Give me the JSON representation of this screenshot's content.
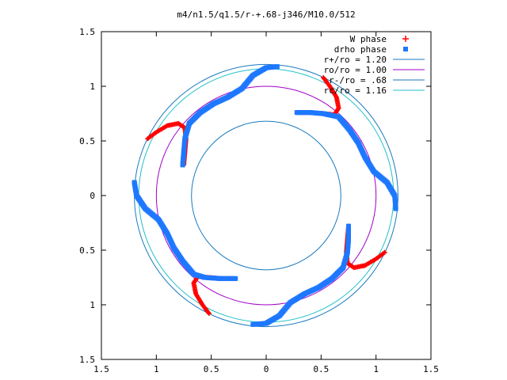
{
  "chart_data": {
    "type": "scatter",
    "title": "m4/n1.5/q1.5/r-+.68-j346/M10.0/512",
    "xlabel": "",
    "ylabel": "",
    "xlim": [
      -1.5,
      1.5
    ],
    "ylim": [
      -1.5,
      1.5
    ],
    "x_ticks": [
      -1.5,
      -1,
      -0.5,
      0,
      0.5,
      1,
      1.5
    ],
    "x_tick_labels": [
      "1.5",
      "1",
      "0.5",
      "0",
      "0.5",
      "1",
      "1.5"
    ],
    "y_ticks": [
      1.5,
      1,
      0.5,
      0,
      -0.5,
      -1,
      -1.5
    ],
    "y_tick_labels": [
      "1.5",
      "1",
      "0.5",
      "0",
      "0.5",
      "1",
      "1.5"
    ],
    "legend_position": "top-right",
    "grid": false,
    "circles": [
      {
        "name": "r+/ro = 1.20",
        "r": 1.2,
        "color": "#1a7abf"
      },
      {
        "name": "ro/ro = 1.00",
        "r": 1.0,
        "color": "#a000c8"
      },
      {
        "name": "r-/ro =  .68",
        "r": 0.68,
        "color": "#1a7abf"
      },
      {
        "name": "rc/ro = 1.16",
        "r": 1.16,
        "color": "#20c0c8"
      }
    ],
    "series": [
      {
        "name": "W phase",
        "marker": "plus",
        "color": "#ff0000",
        "arms": [
          [
            [
              -0.75,
              0.28
            ],
            [
              -0.74,
              0.4
            ],
            [
              -0.73,
              0.52
            ],
            [
              -0.74,
              0.62
            ],
            [
              -0.8,
              0.66
            ],
            [
              -0.9,
              0.64
            ],
            [
              -1.0,
              0.58
            ],
            [
              -1.08,
              0.52
            ]
          ],
          [
            [
              0.28,
              0.76
            ],
            [
              0.4,
              0.76
            ],
            [
              0.52,
              0.75
            ],
            [
              0.62,
              0.74
            ],
            [
              0.66,
              0.8
            ],
            [
              0.64,
              0.9
            ],
            [
              0.58,
              1.0
            ],
            [
              0.52,
              1.08
            ]
          ],
          [
            [
              0.75,
              -0.28
            ],
            [
              0.74,
              -0.4
            ],
            [
              0.73,
              -0.52
            ],
            [
              0.74,
              -0.62
            ],
            [
              0.8,
              -0.66
            ],
            [
              0.9,
              -0.64
            ],
            [
              1.0,
              -0.58
            ],
            [
              1.08,
              -0.52
            ]
          ],
          [
            [
              -0.28,
              -0.76
            ],
            [
              -0.4,
              -0.76
            ],
            [
              -0.52,
              -0.75
            ],
            [
              -0.62,
              -0.74
            ],
            [
              -0.66,
              -0.8
            ],
            [
              -0.64,
              -0.9
            ],
            [
              -0.58,
              -1.0
            ],
            [
              -0.52,
              -1.08
            ]
          ]
        ]
      },
      {
        "name": "drho phase",
        "marker": "square",
        "color": "#1e78ff",
        "arms": [
          [
            [
              -1.2,
              0.12
            ],
            [
              -1.18,
              0.0
            ],
            [
              -1.1,
              -0.12
            ],
            [
              -0.98,
              -0.22
            ],
            [
              -0.9,
              -0.35
            ],
            [
              -0.84,
              -0.48
            ],
            [
              -0.76,
              -0.6
            ],
            [
              -0.66,
              -0.72
            ],
            [
              -0.56,
              -0.75
            ],
            [
              -0.42,
              -0.76
            ],
            [
              -0.28,
              -0.76
            ]
          ],
          [
            [
              -0.12,
              -1.18
            ],
            [
              0.0,
              -1.17
            ],
            [
              0.12,
              -1.1
            ],
            [
              0.22,
              -0.98
            ],
            [
              0.35,
              -0.9
            ],
            [
              0.48,
              -0.84
            ],
            [
              0.6,
              -0.76
            ],
            [
              0.7,
              -0.66
            ],
            [
              0.74,
              -0.52
            ],
            [
              0.75,
              -0.4
            ],
            [
              0.75,
              -0.28
            ]
          ],
          [
            [
              1.18,
              -0.12
            ],
            [
              1.17,
              0.0
            ],
            [
              1.1,
              0.12
            ],
            [
              0.98,
              0.22
            ],
            [
              0.9,
              0.35
            ],
            [
              0.84,
              0.48
            ],
            [
              0.76,
              0.6
            ],
            [
              0.66,
              0.72
            ],
            [
              0.52,
              0.75
            ],
            [
              0.4,
              0.76
            ],
            [
              0.28,
              0.76
            ]
          ],
          [
            [
              0.1,
              1.18
            ],
            [
              0.0,
              1.17
            ],
            [
              -0.12,
              1.1
            ],
            [
              -0.22,
              0.98
            ],
            [
              -0.35,
              0.9
            ],
            [
              -0.48,
              0.84
            ],
            [
              -0.6,
              0.76
            ],
            [
              -0.7,
              0.66
            ],
            [
              -0.74,
              0.52
            ],
            [
              -0.75,
              0.4
            ],
            [
              -0.76,
              0.28
            ]
          ]
        ]
      }
    ]
  }
}
